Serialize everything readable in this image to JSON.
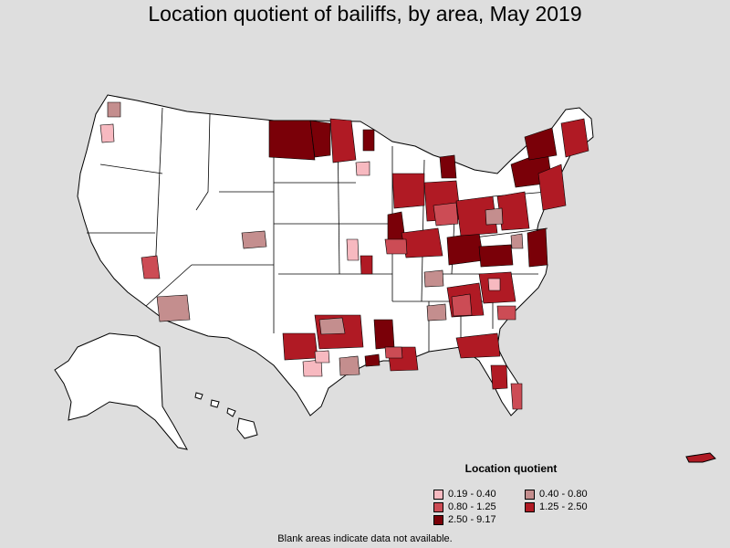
{
  "title": "Location quotient of bailiffs, by area, May 2019",
  "legend": {
    "title": "Location quotient",
    "items": [
      {
        "label": "0.19 - 0.40",
        "color": "#f7b9c0"
      },
      {
        "label": "0.40 - 0.80",
        "color": "#c48e8e"
      },
      {
        "label": "0.80 - 1.25",
        "color": "#cc4c55"
      },
      {
        "label": "1.25 - 2.50",
        "color": "#b01a24"
      },
      {
        "label": "2.50 - 9.17",
        "color": "#7a0008"
      }
    ]
  },
  "footnote": "Blank areas indicate data not available.",
  "colors": {
    "background": "#dedede",
    "land": "#ffffff",
    "border": "#000000"
  }
}
